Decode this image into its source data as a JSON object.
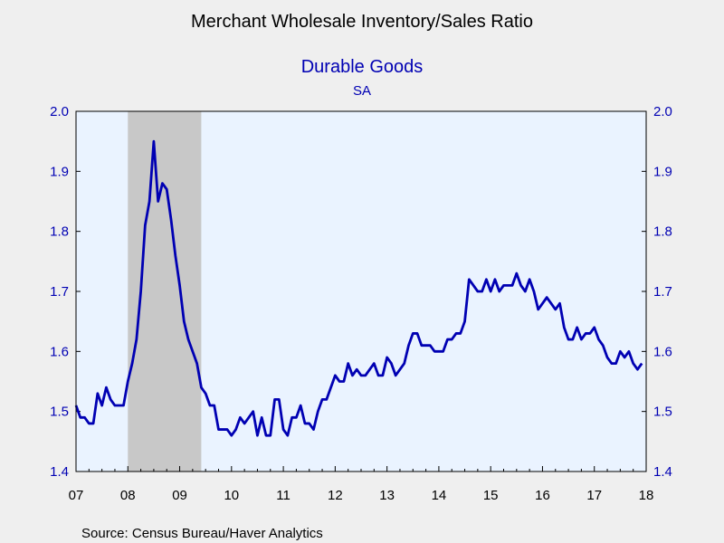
{
  "chart_data": {
    "type": "line",
    "title": "Merchant Wholesale Inventory/Sales Ratio",
    "subtitle": "Durable Goods",
    "subtitle2": "SA",
    "source": "Source:  Census Bureau/Haver Analytics",
    "ylim": [
      1.4,
      2.0
    ],
    "yticks": [
      "1.4",
      "1.5",
      "1.6",
      "1.7",
      "1.8",
      "1.9",
      "2.0"
    ],
    "xticks": [
      "07",
      "08",
      "09",
      "10",
      "11",
      "12",
      "13",
      "14",
      "15",
      "16",
      "17",
      "18"
    ],
    "xlim": [
      "2007-01",
      "2018-01"
    ],
    "grid": false,
    "recession_shading": {
      "start": "2008-01",
      "end": "2009-06",
      "color": "#c8c8c8"
    },
    "plot_background": "#eaf3ff",
    "line_color": "#0000b3",
    "series": [
      {
        "x_start": "2007-01",
        "frequency": "monthly",
        "values": [
          1.51,
          1.49,
          1.49,
          1.48,
          1.48,
          1.53,
          1.51,
          1.54,
          1.52,
          1.51,
          1.51,
          1.51,
          1.55,
          1.58,
          1.62,
          1.7,
          1.81,
          1.85,
          1.95,
          1.85,
          1.88,
          1.87,
          1.82,
          1.76,
          1.71,
          1.65,
          1.62,
          1.6,
          1.58,
          1.54,
          1.53,
          1.51,
          1.51,
          1.47,
          1.47,
          1.47,
          1.46,
          1.47,
          1.49,
          1.48,
          1.49,
          1.5,
          1.46,
          1.49,
          1.46,
          1.46,
          1.52,
          1.52,
          1.47,
          1.46,
          1.49,
          1.49,
          1.51,
          1.48,
          1.48,
          1.47,
          1.5,
          1.52,
          1.52,
          1.54,
          1.56,
          1.55,
          1.55,
          1.58,
          1.56,
          1.57,
          1.56,
          1.56,
          1.57,
          1.58,
          1.56,
          1.56,
          1.59,
          1.58,
          1.56,
          1.57,
          1.58,
          1.61,
          1.63,
          1.63,
          1.61,
          1.61,
          1.61,
          1.6,
          1.6,
          1.6,
          1.62,
          1.62,
          1.63,
          1.63,
          1.65,
          1.72,
          1.71,
          1.7,
          1.7,
          1.72,
          1.7,
          1.72,
          1.7,
          1.71,
          1.71,
          1.71,
          1.73,
          1.71,
          1.7,
          1.72,
          1.7,
          1.67,
          1.68,
          1.69,
          1.68,
          1.67,
          1.68,
          1.64,
          1.62,
          1.62,
          1.64,
          1.62,
          1.63,
          1.63,
          1.64,
          1.62,
          1.61,
          1.59,
          1.58,
          1.58,
          1.6,
          1.59,
          1.6,
          1.58,
          1.57,
          1.58
        ]
      }
    ]
  }
}
